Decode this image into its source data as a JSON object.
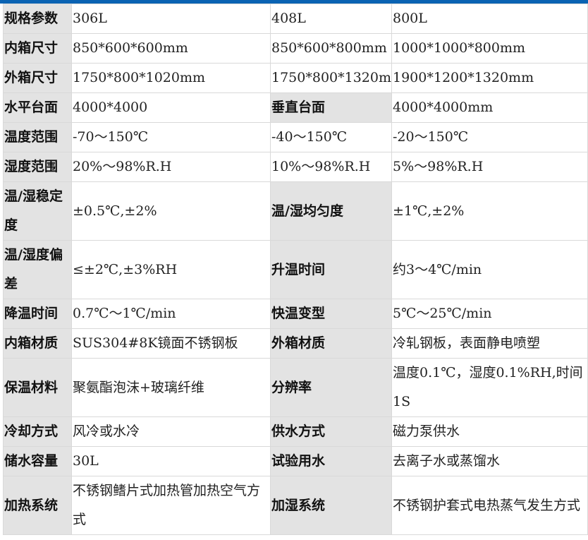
{
  "accent_color": "#0a63b3",
  "rows": [
    [
      "规格参数",
      "306L",
      "408L",
      "800L"
    ],
    [
      "内箱尺寸",
      "850*600*600mm",
      "850*600*800mm",
      "1000*1000*800mm"
    ],
    [
      "外箱尺寸",
      "1750*800*1020mm",
      "1750*800*1320mm",
      "1900*1200*1320mm"
    ],
    [
      "水平台面",
      "4000*4000",
      "垂直台面",
      "4000*4000mm"
    ],
    [
      "温度范围",
      "-70～150℃",
      "-40～150℃",
      "-20～150℃"
    ],
    [
      "湿度范围",
      "20%～98%R.H",
      "10%～98%R.H",
      "5%～98%R.H"
    ],
    [
      "温/湿稳定度",
      "±0.5℃,±2%",
      "温/湿均匀度",
      "±1℃,±2%"
    ],
    [
      "温/湿度偏差",
      "≤±2℃,±3%RH",
      "升温时间",
      "约3～4℃/min"
    ],
    [
      "降温时间",
      "0.7℃～1℃/min",
      "快温变型",
      "5℃～25℃/min"
    ],
    [
      "内箱材质",
      "SUS304#8K镜面不锈钢板",
      "外箱材质",
      "冷轧钢板，表面静电喷塑"
    ],
    [
      "保温材料",
      "聚氨酯泡沫+玻璃纤维",
      "分辨率",
      "温度0.1℃，湿度0.1%RH,时间1S"
    ],
    [
      "冷却方式",
      "风冷或水冷",
      "供水方式",
      "磁力泵供水"
    ],
    [
      "储水容量",
      "30L",
      "试验用水",
      "去离子水或蒸馏水"
    ],
    [
      "加热系统",
      "不锈钢鳍片式加热管加热空气方式",
      "加湿系统",
      "不锈钢护套式电热蒸气发生方式"
    ]
  ]
}
